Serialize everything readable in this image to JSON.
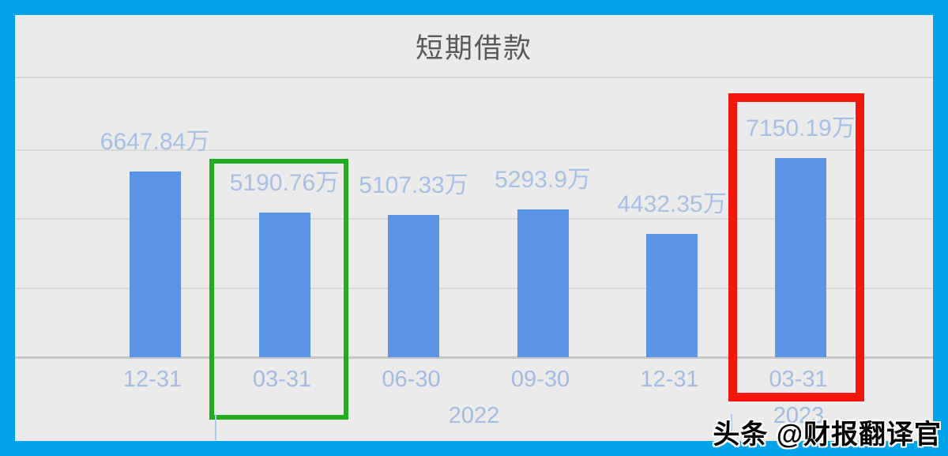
{
  "title": "短期借款",
  "watermark": "头条 @财报翻译官",
  "colors": {
    "frame": "#00A3E9",
    "panel_background": "#EBEBEB",
    "bar": "#5B94E5",
    "value_label": "#A6C0E6",
    "axis_label": "#A2BCE4",
    "title_text": "#5A5A5A",
    "year_tick": "#AECBEF",
    "highlight_green": "#1FAD1F",
    "highlight_red": "#F8160C"
  },
  "chart_data": {
    "type": "bar",
    "title": "短期借款",
    "categories": [
      "12-31",
      "03-31",
      "06-30",
      "09-30",
      "12-31",
      "03-31"
    ],
    "values": [
      6647.84,
      5190.76,
      5107.33,
      5293.9,
      4432.35,
      7150.19
    ],
    "value_labels": [
      "6647.84万",
      "5190.76万",
      "5107.33万",
      "5293.9万",
      "4432.35万",
      "7150.19万"
    ],
    "unit": "万",
    "ylabel": "",
    "xlabel": "",
    "ylim": [
      0,
      10000
    ],
    "grid_interval": 2500,
    "grid": true,
    "legend_position": "none",
    "years": [
      {
        "label": "2022",
        "center_categories": [
          "03-31",
          "06-30",
          "09-30",
          "12-31"
        ]
      },
      {
        "label": "2023",
        "center_categories": [
          "03-31"
        ]
      }
    ],
    "annotations": [
      {
        "type": "box",
        "color_key": "highlight_green",
        "category_index": 1,
        "note": "green highlight around 2022-03-31 bar"
      },
      {
        "type": "box",
        "color_key": "highlight_red",
        "category_index": 5,
        "note": "red highlight around 2023-03-31 bar"
      }
    ]
  }
}
